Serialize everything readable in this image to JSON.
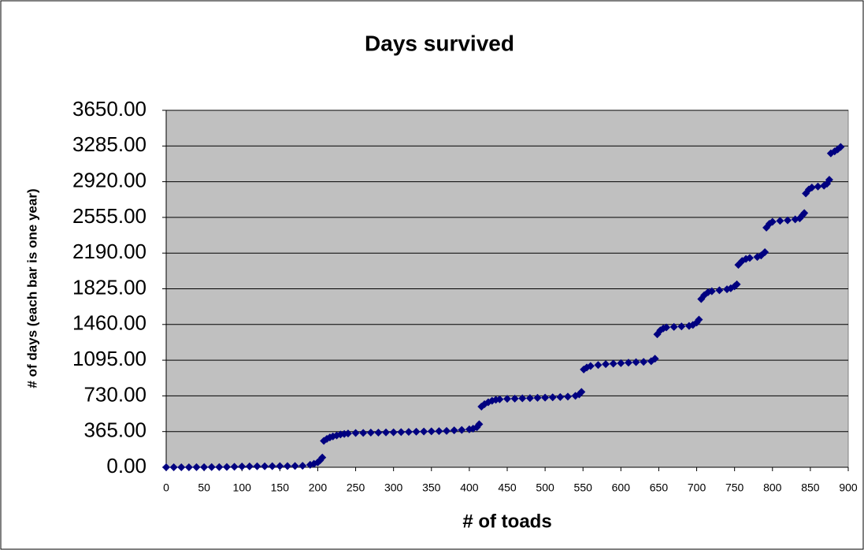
{
  "chart_data": {
    "type": "scatter",
    "title": "Days survived",
    "x_label": "# of toads",
    "y_label": "# of days (each bar is one year)",
    "xlim": [
      0,
      900
    ],
    "xticks": [
      0,
      50,
      100,
      150,
      200,
      250,
      300,
      350,
      400,
      450,
      500,
      550,
      600,
      650,
      700,
      750,
      800,
      850,
      900
    ],
    "ylim": [
      0,
      3650
    ],
    "yticks": [
      {
        "value": 0,
        "label": "0.00"
      },
      {
        "value": 365,
        "label": "365.00"
      },
      {
        "value": 730,
        "label": "730.00"
      },
      {
        "value": 1095,
        "label": "1095.00"
      },
      {
        "value": 1460,
        "label": "1460.00"
      },
      {
        "value": 1825,
        "label": "1825.00"
      },
      {
        "value": 2190,
        "label": "2190.00"
      },
      {
        "value": 2555,
        "label": "2555.00"
      },
      {
        "value": 2920,
        "label": "2920.00"
      },
      {
        "value": 3285,
        "label": "3285.00"
      },
      {
        "value": 3650,
        "label": "3650.00"
      }
    ],
    "grid": true,
    "plot_background": "#c0c0c0",
    "series": [
      {
        "color": "#000080",
        "x": [
          0,
          10,
          20,
          30,
          40,
          50,
          60,
          70,
          80,
          90,
          100,
          110,
          120,
          130,
          140,
          150,
          160,
          170,
          180,
          190,
          195,
          200,
          203,
          206,
          208,
          212,
          216,
          220,
          225,
          230,
          235,
          240,
          250,
          260,
          270,
          280,
          290,
          300,
          310,
          320,
          330,
          340,
          350,
          360,
          370,
          380,
          390,
          400,
          405,
          410,
          413,
          416,
          420,
          425,
          430,
          435,
          440,
          450,
          460,
          470,
          480,
          490,
          500,
          510,
          520,
          530,
          540,
          545,
          548,
          551,
          555,
          560,
          570,
          580,
          590,
          600,
          610,
          620,
          630,
          640,
          645,
          648,
          652,
          656,
          660,
          670,
          680,
          690,
          695,
          700,
          703,
          706,
          710,
          715,
          720,
          730,
          740,
          745,
          750,
          753,
          755,
          760,
          765,
          770,
          780,
          785,
          790,
          792,
          796,
          800,
          810,
          820,
          830,
          836,
          840,
          842,
          844,
          848,
          852,
          860,
          868,
          872,
          875,
          877,
          882,
          886,
          890
        ],
        "values": [
          0,
          0,
          0,
          0,
          1,
          1,
          2,
          2,
          3,
          5,
          8,
          9,
          10,
          10,
          11,
          12,
          12,
          13,
          15,
          25,
          35,
          50,
          70,
          100,
          270,
          290,
          305,
          315,
          325,
          335,
          340,
          345,
          350,
          352,
          355,
          355,
          357,
          358,
          360,
          362,
          364,
          366,
          368,
          370,
          372,
          378,
          382,
          388,
          395,
          410,
          440,
          620,
          645,
          665,
          680,
          690,
          695,
          700,
          702,
          705,
          707,
          710,
          712,
          715,
          718,
          722,
          730,
          745,
          770,
          1000,
          1020,
          1035,
          1045,
          1055,
          1060,
          1065,
          1070,
          1075,
          1078,
          1085,
          1110,
          1360,
          1400,
          1420,
          1430,
          1435,
          1440,
          1445,
          1455,
          1480,
          1510,
          1720,
          1760,
          1790,
          1800,
          1810,
          1820,
          1830,
          1850,
          1870,
          2070,
          2110,
          2130,
          2140,
          2150,
          2165,
          2200,
          2450,
          2490,
          2510,
          2520,
          2525,
          2535,
          2545,
          2580,
          2600,
          2800,
          2840,
          2860,
          2870,
          2880,
          2900,
          2940,
          3210,
          3230,
          3250,
          3275
        ]
      }
    ]
  }
}
